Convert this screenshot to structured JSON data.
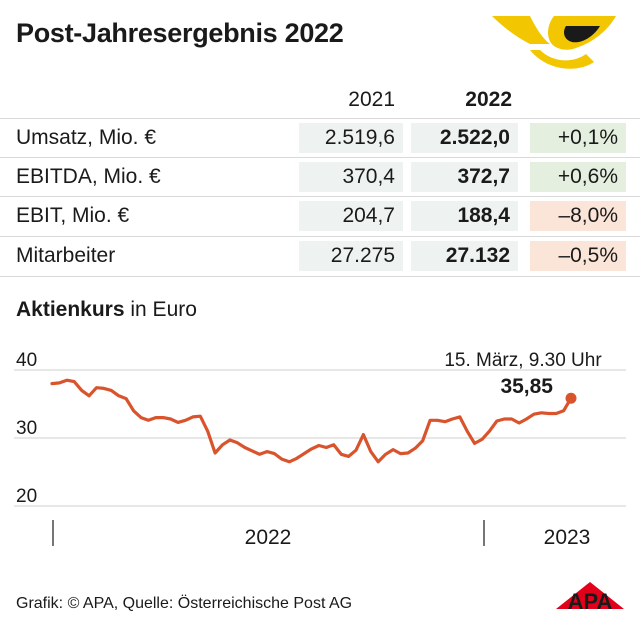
{
  "title": "Post-Jahresergebnis 2022",
  "table": {
    "col_headers": [
      "2021",
      "2022"
    ],
    "rows": [
      {
        "label": "Umsatz, Mio. €",
        "v2021": "2.519,6",
        "v2022": "2.522,0",
        "change": "+0,1%",
        "trend": "pos"
      },
      {
        "label": "EBITDA, Mio. €",
        "v2021": "370,4",
        "v2022": "372,7",
        "change": "+0,6%",
        "trend": "pos"
      },
      {
        "label": "EBIT, Mio. €",
        "v2021": "204,7",
        "v2022": "188,4",
        "change": "–8,0%",
        "trend": "neg"
      },
      {
        "label": "Mitarbeiter",
        "v2021": "27.275",
        "v2022": "27.132",
        "change": "–0,5%",
        "trend": "neg"
      }
    ]
  },
  "chart_title_bold": "Aktienkurs",
  "chart_title_rest": " in Euro",
  "chart_data": {
    "type": "line",
    "ylim": [
      20,
      40
    ],
    "yticks": [
      40,
      30,
      20
    ],
    "xlabels": [
      "2022",
      "2023"
    ],
    "series": [
      {
        "values": [
          38.0,
          38.1,
          38.5,
          38.3,
          37.0,
          36.2,
          37.4,
          37.3,
          37.0,
          36.2,
          35.8,
          34.0,
          33.0,
          32.6,
          33.0,
          33.0,
          32.8,
          32.3,
          32.6,
          33.1,
          33.2,
          31.0,
          27.8,
          29.0,
          29.7,
          29.3,
          28.6,
          28.1,
          27.6,
          28.0,
          27.7,
          26.9,
          26.5,
          27.0,
          27.7,
          28.4,
          28.9,
          28.6,
          29.0,
          27.6,
          27.3,
          28.2,
          30.5,
          28.0,
          26.5,
          27.6,
          28.3,
          27.7,
          27.8,
          28.5,
          29.6,
          32.6,
          32.6,
          32.4,
          32.8,
          33.1,
          31.0,
          29.2,
          29.8,
          31.0,
          32.5,
          32.8,
          32.8,
          32.2,
          32.8,
          33.5,
          33.7,
          33.6,
          33.6,
          34.0,
          35.85
        ],
        "color": "#d9542c"
      }
    ],
    "annotation": {
      "label": "15. März, 9.30 Uhr",
      "value": "35,85"
    }
  },
  "source": "Grafik: © APA, Quelle: Österreichische Post AG",
  "apa_logo_text": "APA"
}
